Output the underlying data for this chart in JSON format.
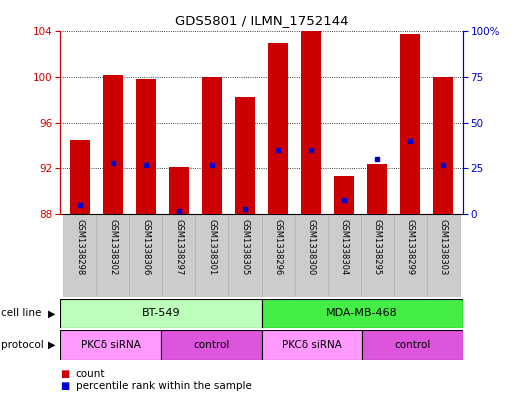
{
  "title": "GDS5801 / ILMN_1752144",
  "samples": [
    "GSM1338298",
    "GSM1338302",
    "GSM1338306",
    "GSM1338297",
    "GSM1338301",
    "GSM1338305",
    "GSM1338296",
    "GSM1338300",
    "GSM1338304",
    "GSM1338295",
    "GSM1338299",
    "GSM1338303"
  ],
  "counts": [
    94.5,
    100.2,
    99.8,
    92.1,
    100.0,
    98.3,
    103.0,
    104.6,
    91.3,
    92.4,
    103.8,
    100.0
  ],
  "percentiles": [
    5,
    28,
    27,
    2,
    27,
    3,
    35,
    35,
    8,
    30,
    40,
    27
  ],
  "ymin": 88,
  "ymax": 104,
  "yticks": [
    88,
    92,
    96,
    100,
    104
  ],
  "yticks_right": [
    0,
    25,
    50,
    75,
    100
  ],
  "bar_color": "#cc0000",
  "percentile_color": "#0000cc",
  "cell_lines": [
    {
      "label": "BT-549",
      "start": 0,
      "end": 6,
      "color": "#bbffbb"
    },
    {
      "label": "MDA-MB-468",
      "start": 6,
      "end": 12,
      "color": "#44ee44"
    }
  ],
  "protocols": [
    {
      "label": "PKCδ siRNA",
      "start": 0,
      "end": 3,
      "color": "#ff99ff"
    },
    {
      "label": "control",
      "start": 3,
      "end": 6,
      "color": "#dd55dd"
    },
    {
      "label": "PKCδ siRNA",
      "start": 6,
      "end": 9,
      "color": "#ff99ff"
    },
    {
      "label": "control",
      "start": 9,
      "end": 12,
      "color": "#dd55dd"
    }
  ],
  "legend_count_color": "#cc0000",
  "legend_percentile_color": "#0000cc",
  "grid_color": "#000000",
  "axis_label_color_left": "#cc0000",
  "axis_label_color_right": "#0000cc",
  "background_color": "#ffffff",
  "plot_bg_color": "#ffffff"
}
